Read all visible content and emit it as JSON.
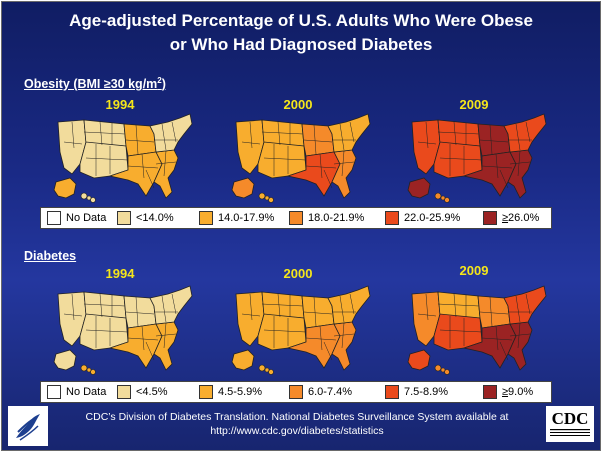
{
  "title": {
    "line1": "Age-adjusted Percentage of U.S. Adults Who Were Obese",
    "line2": "or Who Had Diagnosed Diabetes"
  },
  "obesity": {
    "label_main": "Obesity (BMI ≥30 kg/m",
    "label_sup": "2",
    "label_end": ")",
    "years": [
      "1994",
      "2000",
      "2009"
    ],
    "legend": [
      {
        "label": "No Data",
        "color": "#ffffff"
      },
      {
        "label": "<14.0%",
        "color": "#f2dc9c"
      },
      {
        "label": "14.0-17.9%",
        "color": "#f8ad2e"
      },
      {
        "label": "18.0-21.9%",
        "color": "#f58a2a"
      },
      {
        "label": "22.0-25.9%",
        "color": "#ea4a1c"
      },
      {
        "label": "26.0%",
        "prefix": "≥",
        "color": "#9b2323"
      }
    ]
  },
  "diabetes": {
    "label_main": "Diabetes",
    "years": [
      "1994",
      "2000",
      "2009"
    ],
    "legend": [
      {
        "label": "No Data",
        "color": "#ffffff"
      },
      {
        "label": "<4.5%",
        "color": "#f2dc9c"
      },
      {
        "label": "4.5-5.9%",
        "color": "#f8ad2e"
      },
      {
        "label": "6.0-7.4%",
        "color": "#f58a2a"
      },
      {
        "label": "7.5-8.9%",
        "color": "#ea4a1c"
      },
      {
        "label": "9.0%",
        "prefix": "≥",
        "color": "#9b2323"
      }
    ]
  },
  "footer": {
    "line1": "CDC’s  Division of Diabetes Translation. National Diabetes Surveillance System available at",
    "line2": "http://www.cdc.gov/diabetes/statistics"
  },
  "logos": {
    "hhs": "hhs-eagle-logo",
    "cdc_text": "CDC"
  }
}
